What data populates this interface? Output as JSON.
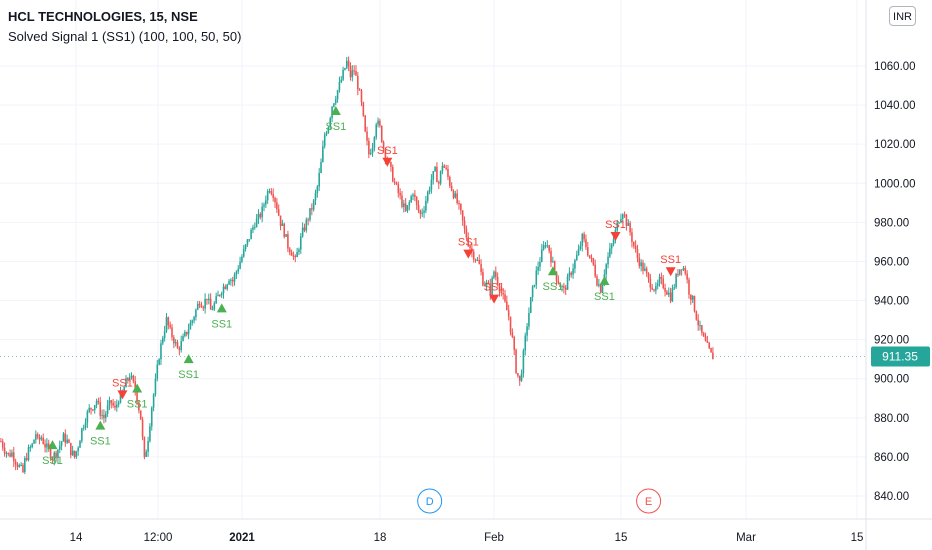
{
  "header": {
    "title": "HCL TECHNOLOGIES, 15, NSE",
    "indicator": "Solved Signal 1 (SS1) (100, 100, 50, 50)"
  },
  "currency_button": "INR",
  "colors": {
    "up": "#26a69a",
    "down": "#ef5350",
    "buy_signal": "#4caf50",
    "sell_signal": "#f44336",
    "price_badge": "#26a69a",
    "event_d": "#2196f3",
    "event_e": "#ef5350",
    "grid": "#f0f3fa"
  },
  "chart_data": {
    "type": "candlestick",
    "symbol": "HCL TECHNOLOGIES",
    "interval": "15",
    "exchange": "NSE",
    "ylim": [
      830,
      1070
    ],
    "y_ticks": [
      "840.00",
      "860.00",
      "880.00",
      "900.00",
      "920.00",
      "940.00",
      "960.00",
      "980.00",
      "1000.00",
      "1020.00",
      "1040.00",
      "1060.00"
    ],
    "x_ticks": [
      "14",
      "12:00",
      "2021",
      "18",
      "Feb",
      "15",
      "Mar",
      "15"
    ],
    "x_tick_bold": [
      false,
      false,
      true,
      false,
      false,
      false,
      false,
      false
    ],
    "last_price": "911.35",
    "price_path": [
      [
        0,
        868
      ],
      [
        2,
        864
      ],
      [
        4,
        861
      ],
      [
        6,
        862
      ],
      [
        8,
        858
      ],
      [
        10,
        855
      ],
      [
        12,
        852
      ],
      [
        13,
        858
      ],
      [
        15,
        863
      ],
      [
        17,
        866
      ],
      [
        19,
        872
      ],
      [
        20,
        868
      ],
      [
        22,
        870
      ],
      [
        24,
        866
      ],
      [
        26,
        863
      ],
      [
        28,
        860
      ],
      [
        30,
        862
      ],
      [
        32,
        866
      ],
      [
        34,
        870
      ],
      [
        36,
        868
      ],
      [
        38,
        863
      ],
      [
        40,
        860
      ],
      [
        42,
        866
      ],
      [
        44,
        874
      ],
      [
        46,
        880
      ],
      [
        48,
        884
      ],
      [
        50,
        886
      ],
      [
        52,
        889
      ],
      [
        54,
        883
      ],
      [
        56,
        880
      ],
      [
        58,
        885
      ],
      [
        60,
        888
      ],
      [
        62,
        884
      ],
      [
        64,
        890
      ],
      [
        66,
        893
      ],
      [
        68,
        898
      ],
      [
        70,
        902
      ],
      [
        72,
        897
      ],
      [
        74,
        890
      ],
      [
        76,
        880
      ],
      [
        78,
        858
      ],
      [
        80,
        870
      ],
      [
        82,
        886
      ],
      [
        84,
        898
      ],
      [
        86,
        912
      ],
      [
        88,
        922
      ],
      [
        90,
        930
      ],
      [
        92,
        924
      ],
      [
        94,
        920
      ],
      [
        96,
        915
      ],
      [
        98,
        918
      ],
      [
        100,
        922
      ],
      [
        102,
        926
      ],
      [
        104,
        930
      ],
      [
        106,
        935
      ],
      [
        108,
        940
      ],
      [
        110,
        938
      ],
      [
        112,
        942
      ],
      [
        114,
        935
      ],
      [
        116,
        938
      ],
      [
        118,
        942
      ],
      [
        120,
        946
      ],
      [
        122,
        948
      ],
      [
        124,
        952
      ],
      [
        126,
        950
      ],
      [
        128,
        955
      ],
      [
        130,
        960
      ],
      [
        132,
        965
      ],
      [
        134,
        970
      ],
      [
        136,
        975
      ],
      [
        138,
        980
      ],
      [
        140,
        982
      ],
      [
        142,
        986
      ],
      [
        144,
        993
      ],
      [
        146,
        998
      ],
      [
        148,
        995
      ],
      [
        150,
        988
      ],
      [
        152,
        980
      ],
      [
        154,
        975
      ],
      [
        156,
        968
      ],
      [
        158,
        965
      ],
      [
        160,
        960
      ],
      [
        162,
        968
      ],
      [
        164,
        975
      ],
      [
        166,
        980
      ],
      [
        168,
        985
      ],
      [
        170,
        990
      ],
      [
        172,
        998
      ],
      [
        174,
        1010
      ],
      [
        176,
        1025
      ],
      [
        178,
        1030
      ],
      [
        180,
        1040
      ],
      [
        182,
        1045
      ],
      [
        184,
        1050
      ],
      [
        186,
        1056
      ],
      [
        188,
        1062
      ],
      [
        190,
        1055
      ],
      [
        192,
        1058
      ],
      [
        194,
        1050
      ],
      [
        196,
        1040
      ],
      [
        198,
        1025
      ],
      [
        200,
        1015
      ],
      [
        202,
        1020
      ],
      [
        204,
        1032
      ],
      [
        206,
        1028
      ],
      [
        208,
        1018
      ],
      [
        210,
        1012
      ],
      [
        212,
        1006
      ],
      [
        214,
        1000
      ],
      [
        216,
        995
      ],
      [
        218,
        990
      ],
      [
        220,
        985
      ],
      [
        222,
        990
      ],
      [
        224,
        996
      ],
      [
        226,
        988
      ],
      [
        228,
        984
      ],
      [
        230,
        988
      ],
      [
        232,
        995
      ],
      [
        234,
        1002
      ],
      [
        236,
        1006
      ],
      [
        238,
        1000
      ],
      [
        240,
        1010
      ],
      [
        242,
        1006
      ],
      [
        244,
        1000
      ],
      [
        246,
        995
      ],
      [
        248,
        990
      ],
      [
        250,
        984
      ],
      [
        252,
        976
      ],
      [
        254,
        970
      ],
      [
        256,
        965
      ],
      [
        258,
        962
      ],
      [
        260,
        958
      ],
      [
        262,
        950
      ],
      [
        264,
        948
      ],
      [
        266,
        945
      ],
      [
        268,
        955
      ],
      [
        270,
        950
      ],
      [
        272,
        944
      ],
      [
        274,
        938
      ],
      [
        276,
        932
      ],
      [
        278,
        920
      ],
      [
        280,
        905
      ],
      [
        282,
        898
      ],
      [
        284,
        912
      ],
      [
        286,
        928
      ],
      [
        288,
        940
      ],
      [
        290,
        950
      ],
      [
        292,
        958
      ],
      [
        294,
        964
      ],
      [
        296,
        970
      ],
      [
        298,
        966
      ],
      [
        300,
        958
      ],
      [
        302,
        952
      ],
      [
        304,
        948
      ],
      [
        306,
        945
      ],
      [
        308,
        950
      ],
      [
        310,
        955
      ],
      [
        312,
        960
      ],
      [
        314,
        965
      ],
      [
        316,
        972
      ],
      [
        318,
        968
      ],
      [
        320,
        962
      ],
      [
        322,
        958
      ],
      [
        324,
        950
      ],
      [
        326,
        946
      ],
      [
        328,
        955
      ],
      [
        330,
        962
      ],
      [
        332,
        968
      ],
      [
        334,
        975
      ],
      [
        336,
        982
      ],
      [
        338,
        986
      ],
      [
        340,
        980
      ],
      [
        342,
        975
      ],
      [
        344,
        968
      ],
      [
        346,
        962
      ],
      [
        348,
        958
      ],
      [
        350,
        955
      ],
      [
        352,
        950
      ],
      [
        354,
        948
      ],
      [
        356,
        945
      ],
      [
        358,
        950
      ],
      [
        360,
        948
      ],
      [
        362,
        945
      ],
      [
        364,
        942
      ],
      [
        366,
        948
      ],
      [
        368,
        955
      ],
      [
        370,
        958
      ],
      [
        372,
        955
      ],
      [
        374,
        945
      ],
      [
        376,
        940
      ],
      [
        378,
        932
      ],
      [
        380,
        925
      ],
      [
        382,
        920
      ],
      [
        384,
        916
      ],
      [
        386,
        912
      ],
      [
        387,
        911.35
      ]
    ],
    "x_domain": [
      0,
      387
    ],
    "signals": [
      {
        "type": "buy",
        "label": "SS1",
        "x": 28,
        "price": 866,
        "label_pos": "below"
      },
      {
        "type": "buy",
        "label": "SS1",
        "x": 54,
        "price": 876,
        "label_pos": "below"
      },
      {
        "type": "sell",
        "label": "SS1",
        "x": 66,
        "price": 892,
        "label_pos": "above"
      },
      {
        "type": "buy",
        "label": "SS1",
        "x": 74,
        "price": 895,
        "label_pos": "below"
      },
      {
        "type": "buy",
        "label": "SS1",
        "x": 102,
        "price": 910,
        "label_pos": "below"
      },
      {
        "type": "buy",
        "label": "SS1",
        "x": 120,
        "price": 936,
        "label_pos": "below"
      },
      {
        "type": "buy",
        "label": "SS1",
        "x": 182,
        "price": 1037,
        "label_pos": "below"
      },
      {
        "type": "sell",
        "label": "SS1",
        "x": 210,
        "price": 1011,
        "label_pos": "above"
      },
      {
        "type": "sell",
        "label": "SS1",
        "x": 254,
        "price": 964,
        "label_pos": "above"
      },
      {
        "type": "sell",
        "label": "SS1",
        "x": 268,
        "price": 941,
        "label_pos": "above"
      },
      {
        "type": "buy",
        "label": "SS1",
        "x": 300,
        "price": 955,
        "label_pos": "below"
      },
      {
        "type": "buy",
        "label": "SS1",
        "x": 328,
        "price": 950,
        "label_pos": "below"
      },
      {
        "type": "sell",
        "label": "SS1",
        "x": 334,
        "price": 973,
        "label_pos": "above"
      },
      {
        "type": "sell",
        "label": "SS1",
        "x": 364,
        "price": 955,
        "label_pos": "above"
      }
    ],
    "events": [
      {
        "label": "D",
        "x": 233
      },
      {
        "label": "E",
        "x": 352
      }
    ]
  }
}
